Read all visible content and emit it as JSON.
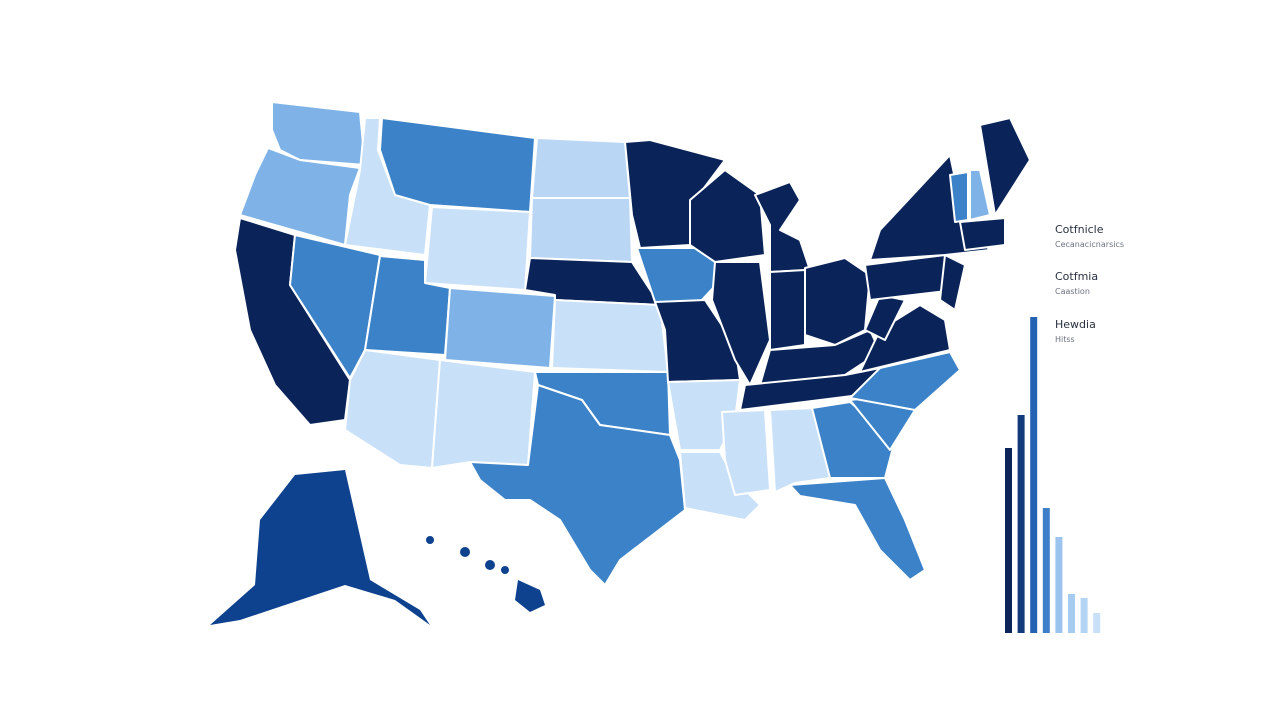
{
  "legend": [
    {
      "title": "Cotfnicle",
      "subtitle": "Cecanacicnarsics"
    },
    {
      "title": "Cotfmia",
      "subtitle": "Caastion"
    },
    {
      "title": "Hewdia",
      "subtitle": "Hitss"
    }
  ],
  "bars": {
    "values": [
      185,
      218,
      316,
      125,
      96,
      39,
      35,
      20
    ],
    "colors": [
      "#0a2459",
      "#123a7a",
      "#2462b4",
      "#3d7ec8",
      "#9cc4ee",
      "#a6cbf0",
      "#b3d3f3",
      "#c8e0f8"
    ]
  }
}
